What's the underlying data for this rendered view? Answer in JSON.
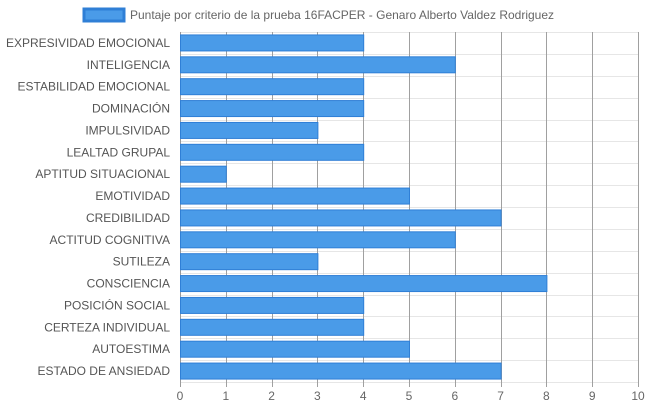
{
  "chart_data": {
    "type": "bar",
    "orientation": "horizontal",
    "legend_position": "top",
    "grid": true,
    "xlim": [
      0,
      10
    ],
    "x_ticks": [
      "0",
      "1",
      "2",
      "3",
      "4",
      "5",
      "6",
      "7",
      "8",
      "9",
      "10"
    ],
    "categories": [
      "EXPRESIVIDAD EMOCIONAL",
      "INTELIGENCIA",
      "ESTABILIDAD EMOCIONAL",
      "DOMINACIÓN",
      "IMPULSIVIDAD",
      "LEALTAD GRUPAL",
      "APTITUD SITUACIONAL",
      "EMOTIVIDAD",
      "CREDIBILIDAD",
      "ACTITUD COGNITIVA",
      "SUTILEZA",
      "CONSCIENCIA",
      "POSICIÓN SOCIAL",
      "CERTEZA INDIVIDUAL",
      "AUTOESTIMA",
      "ESTADO DE ANSIEDAD"
    ],
    "series": [
      {
        "name": "Puntaje por criterio de la prueba 16FACPER - Genaro Alberto Valdez Rodriguez",
        "values": [
          4,
          6,
          4,
          4,
          3,
          4,
          1,
          5,
          7,
          6,
          3,
          8,
          4,
          4,
          5,
          7
        ],
        "color": "#4a9be8",
        "border_color": "#2f7fd6"
      }
    ]
  }
}
